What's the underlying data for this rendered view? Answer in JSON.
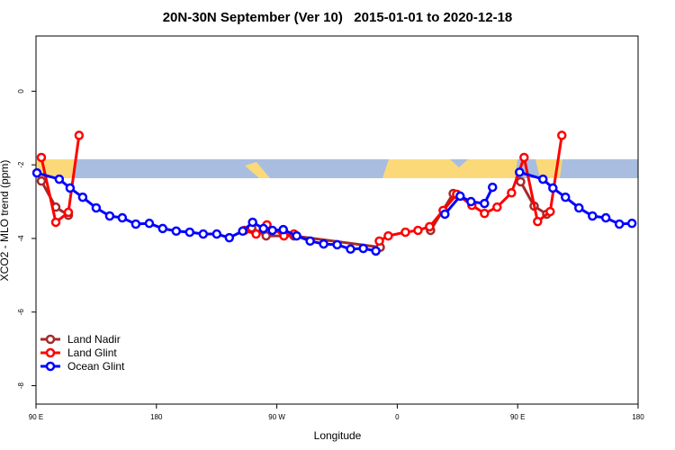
{
  "chart_data": {
    "type": "line",
    "title": "20N-30N September (Ver 10)   2015-01-01 to 2020-12-18",
    "x_label": "Longitude",
    "y_label": "XCO2 - MLO trend (ppm)",
    "xlim": [
      90,
      540
    ],
    "ylim": [
      -8.5,
      1.5
    ],
    "xticks": [
      {
        "value": 90,
        "label": "90 E"
      },
      {
        "value": 180,
        "label": "180"
      },
      {
        "value": 270,
        "label": "90 W"
      },
      {
        "value": 360,
        "label": "0"
      },
      {
        "value": 450,
        "label": "90 E"
      },
      {
        "value": 540,
        "label": "180"
      }
    ],
    "yticks": [
      0,
      -2,
      -4,
      -6,
      -8
    ],
    "legend": "bottom-left",
    "series": [
      {
        "name": "Land Nadir",
        "color": "#a52a2a",
        "x": [
          94,
          104.8,
          114.2,
          null,
          251.2,
          262,
          282.8,
          347.3,
          null,
          384.9,
          401.8,
          null,
          452.2,
          462.3,
          471.7
        ],
        "values": [
          -2.44,
          -3.15,
          -3.37,
          null,
          -3.71,
          -3.93,
          -3.93,
          -4.24,
          null,
          -3.78,
          -2.78,
          null,
          -2.46,
          -3.12,
          -3.34
        ]
      },
      {
        "name": "Land Glint",
        "color": "#ff0000",
        "x": [
          94,
          104.8,
          114.2,
          122.2,
          null,
          245.8,
          254.5,
          262.6,
          275.3,
          282.8,
          null,
          346.6,
          353.3,
          366.1,
          375.5,
          384.2,
          394.3,
          404.4,
          415.8,
          425.2,
          434.6,
          445.4,
          454.8,
          464.9,
          474.3,
          483
        ],
        "values": [
          -1.8,
          -3.56,
          -3.29,
          -1.2,
          null,
          -3.78,
          -3.88,
          -3.63,
          -3.93,
          -3.88,
          null,
          -4.07,
          -3.93,
          -3.83,
          -3.78,
          -3.68,
          -3.24,
          -2.8,
          -3.1,
          -3.32,
          -3.15,
          -2.76,
          -1.8,
          -3.54,
          -3.27,
          -1.2
        ]
      },
      {
        "name": "Ocean Glint",
        "color": "#0000ff",
        "x": [
          90.7,
          107.4,
          115.5,
          124.9,
          135,
          145.1,
          154.5,
          164.6,
          174.7,
          184.7,
          194.8,
          204.9,
          215,
          225.1,
          234.5,
          244.5,
          251.9,
          260,
          266.7,
          274.8,
          284.8,
          294.9,
          305,
          315.1,
          325.1,
          334.6,
          344,
          null,
          395.6,
          407,
          415.1,
          425.2,
          431.2,
          null,
          451.4,
          468.9,
          476.3,
          485.7,
          495.8,
          505.9,
          515.9,
          526,
          535.4
        ],
        "values": [
          -2.22,
          -2.39,
          -2.63,
          -2.88,
          -3.17,
          -3.39,
          -3.44,
          -3.61,
          -3.59,
          -3.73,
          -3.8,
          -3.83,
          -3.88,
          -3.88,
          -3.98,
          -3.8,
          -3.56,
          -3.73,
          -3.78,
          -3.76,
          -3.93,
          -4.07,
          -4.15,
          -4.17,
          -4.29,
          -4.27,
          -4.34,
          null,
          -3.34,
          -2.85,
          -3.0,
          -3.05,
          -2.61,
          null,
          -2.2,
          -2.39,
          -2.63,
          -2.88,
          -3.17,
          -3.39,
          -3.44,
          -3.61,
          -3.59
        ]
      }
    ]
  }
}
